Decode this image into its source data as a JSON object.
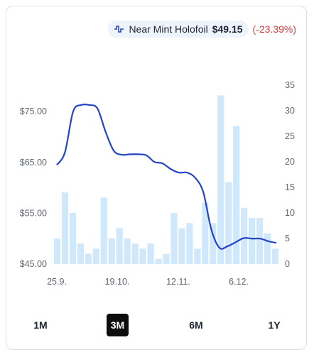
{
  "legend": {
    "label": "Near Mint Holofoil",
    "price": "$49.15",
    "change": "(-23.39%)",
    "icon": "line-chart-icon"
  },
  "ranges": [
    {
      "label": "1M",
      "active": false
    },
    {
      "label": "3M",
      "active": true
    },
    {
      "label": "6M",
      "active": false
    },
    {
      "label": "1Y",
      "active": false
    }
  ],
  "colors": {
    "line": "#2344c8",
    "bars": "#cfe8fb",
    "change_negative": "#d23c3c",
    "active_range": "#0d0d0d"
  },
  "chart_data": {
    "type": "line",
    "price_axis": {
      "ticks": [
        "$45.00",
        "$55.00",
        "$65.00",
        "$75.00"
      ],
      "range": [
        45,
        80.2
      ]
    },
    "volume_axis": {
      "ticks": [
        "0",
        "5",
        "10",
        "15",
        "20",
        "25",
        "30",
        "35"
      ],
      "range": [
        0,
        35
      ]
    },
    "x_tick_labels": [
      "25.9.",
      "19.10.",
      "12.11.",
      "6.12."
    ],
    "price_series": [
      {
        "x": "25.9.",
        "y": 64.5
      },
      {
        "x": "28.9.",
        "y": 67.0
      },
      {
        "x": "1.10.",
        "y": 75.0
      },
      {
        "x": "4.10.",
        "y": 76.3
      },
      {
        "x": "7.10.",
        "y": 76.3
      },
      {
        "x": "10.10.",
        "y": 75.6
      },
      {
        "x": "13.10.",
        "y": 71.0
      },
      {
        "x": "16.10.",
        "y": 67.3
      },
      {
        "x": "19.10.",
        "y": 66.5
      },
      {
        "x": "22.10.",
        "y": 66.6
      },
      {
        "x": "25.10.",
        "y": 66.6
      },
      {
        "x": "28.10.",
        "y": 66.4
      },
      {
        "x": "31.10.",
        "y": 65.1
      },
      {
        "x": "3.11.",
        "y": 64.8
      },
      {
        "x": "6.11.",
        "y": 63.7
      },
      {
        "x": "9.11.",
        "y": 63.0
      },
      {
        "x": "12.11.",
        "y": 63.0
      },
      {
        "x": "15.11.",
        "y": 62.0
      },
      {
        "x": "18.11.",
        "y": 59.2
      },
      {
        "x": "21.11.",
        "y": 51.8
      },
      {
        "x": "24.11.",
        "y": 48.2
      },
      {
        "x": "27.11.",
        "y": 48.5
      },
      {
        "x": "30.11.",
        "y": 49.3
      },
      {
        "x": "3.12.",
        "y": 50.1
      },
      {
        "x": "6.12.",
        "y": 50.0
      },
      {
        "x": "9.12.",
        "y": 50.0
      },
      {
        "x": "12.12.",
        "y": 49.5
      },
      {
        "x": "15.12.",
        "y": 49.15
      }
    ],
    "volume_bars": [
      5,
      14,
      10,
      4,
      2,
      3,
      13,
      5,
      7,
      5,
      4,
      3,
      4,
      1,
      2,
      10,
      7,
      8,
      3,
      12,
      8,
      33,
      16,
      27,
      11,
      9,
      9,
      6,
      3
    ]
  }
}
